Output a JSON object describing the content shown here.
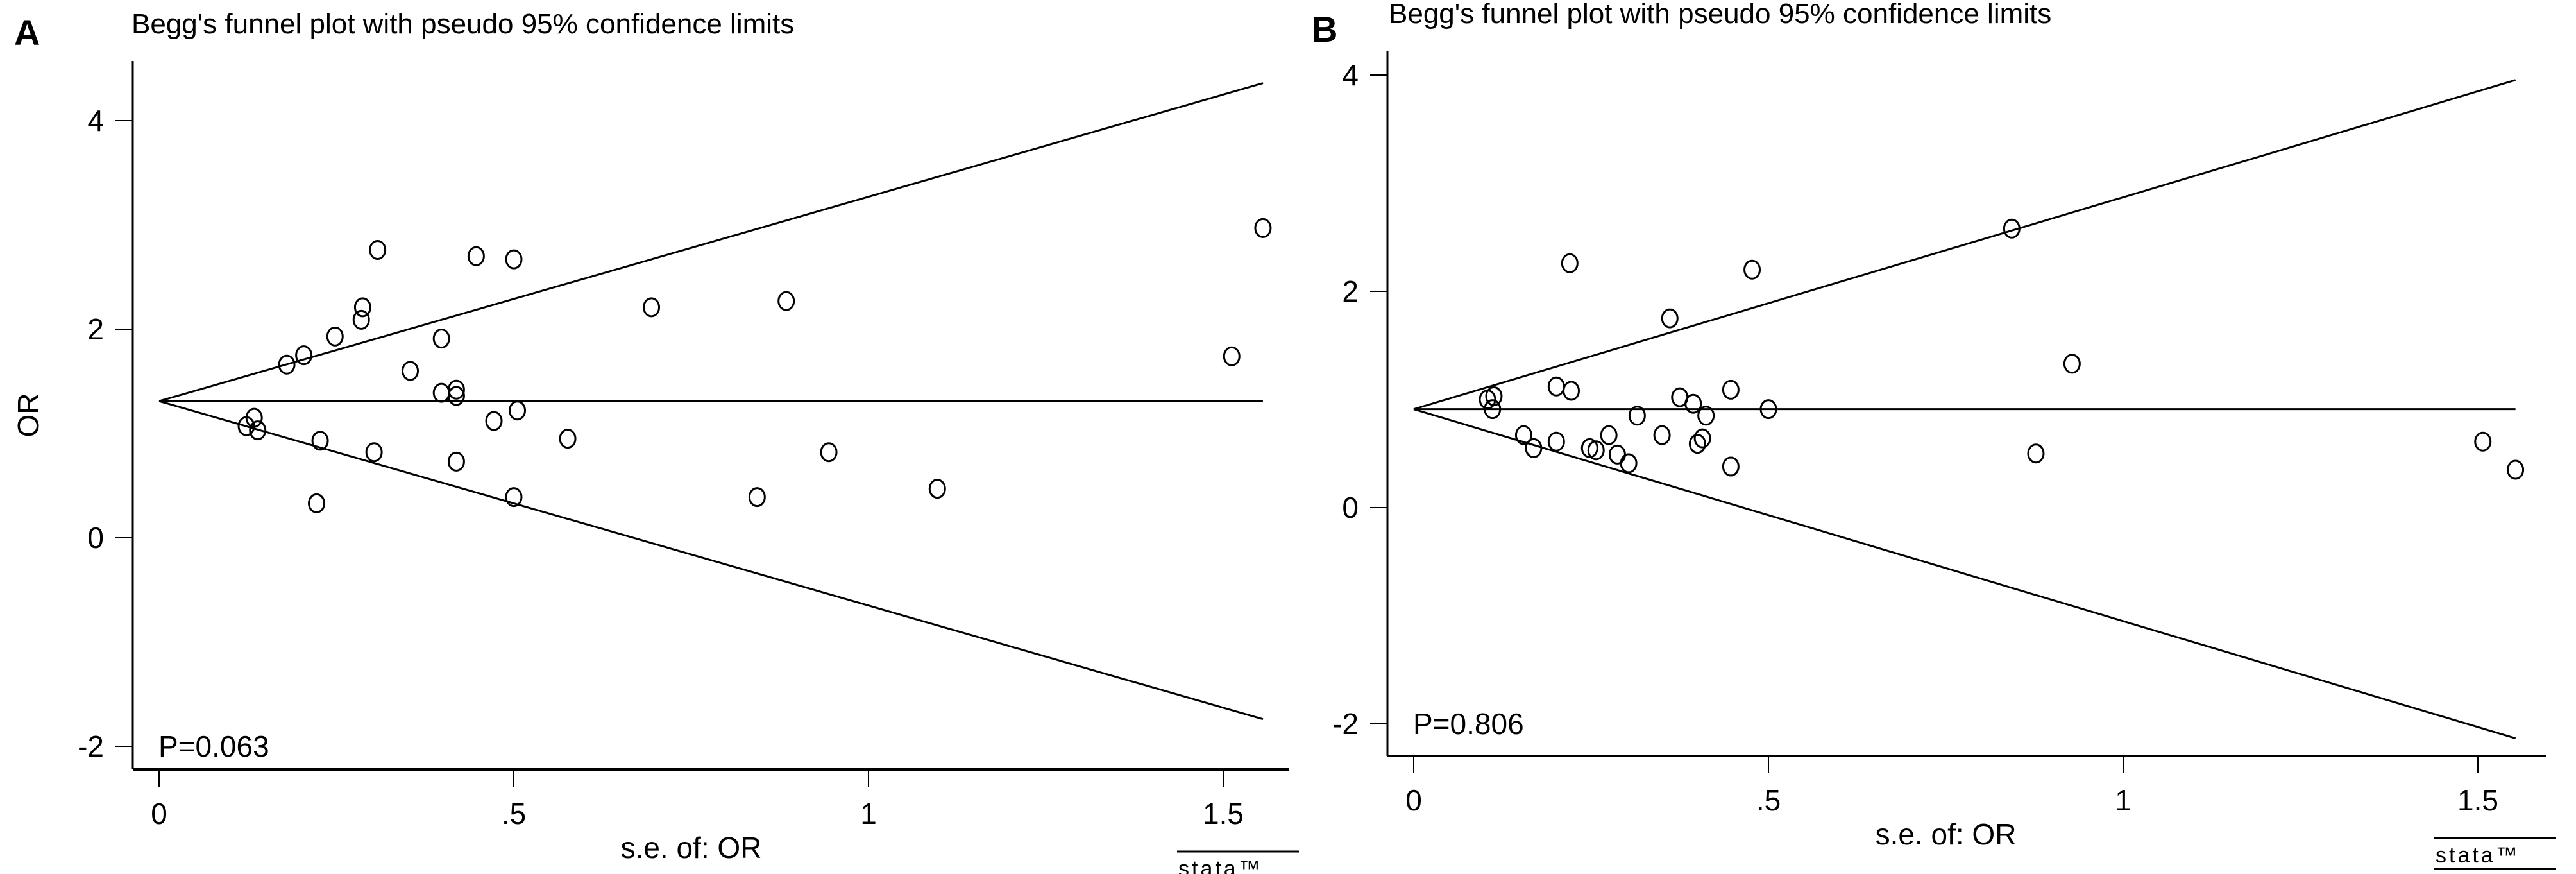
{
  "chart_data": [
    {
      "type": "scatter",
      "panel": "A",
      "title": "Begg's funnel plot with pseudo 95% confidence limits",
      "xlabel": "s.e. of: OR",
      "ylabel": "OR",
      "xlim": [
        -0.025,
        1.59
      ],
      "ylim": [
        -2.3,
        4.6
      ],
      "xticks": [
        0,
        0.5,
        1,
        1.5
      ],
      "xtick_labels": [
        "0",
        ".5",
        "1",
        "1.5"
      ],
      "yticks": [
        -2,
        0,
        2,
        4
      ],
      "ytick_labels": [
        "-2",
        "0",
        "2",
        "4"
      ],
      "pooled_estimate": 1.31,
      "funnel_se_max": 1.556,
      "annotation": "P=0.063",
      "watermark": "stata™",
      "points": [
        [
          0.123,
          1.07
        ],
        [
          0.134,
          1.15
        ],
        [
          0.139,
          1.03
        ],
        [
          0.18,
          1.66
        ],
        [
          0.204,
          1.75
        ],
        [
          0.227,
          0.93
        ],
        [
          0.222,
          0.33
        ],
        [
          0.248,
          1.93
        ],
        [
          0.285,
          2.09
        ],
        [
          0.287,
          2.21
        ],
        [
          0.308,
          2.76
        ],
        [
          0.303,
          0.82
        ],
        [
          0.354,
          1.6
        ],
        [
          0.398,
          1.91
        ],
        [
          0.398,
          1.39
        ],
        [
          0.419,
          1.42
        ],
        [
          0.419,
          1.36
        ],
        [
          0.419,
          0.73
        ],
        [
          0.447,
          2.7
        ],
        [
          0.472,
          1.12
        ],
        [
          0.5,
          2.67
        ],
        [
          0.505,
          1.22
        ],
        [
          0.5,
          0.39
        ],
        [
          0.576,
          0.95
        ],
        [
          0.694,
          2.21
        ],
        [
          0.843,
          0.39
        ],
        [
          0.884,
          2.27
        ],
        [
          0.944,
          0.82
        ],
        [
          1.097,
          0.47
        ],
        [
          1.512,
          1.74
        ],
        [
          1.556,
          2.97
        ]
      ]
    },
    {
      "type": "scatter",
      "panel": "B",
      "title": "Begg's funnel plot with pseudo 95% confidence limits",
      "xlabel": "s.e. of: OR",
      "ylabel": "",
      "xlim": [
        -0.025,
        1.6
      ],
      "ylim": [
        -2.4,
        4.3
      ],
      "xticks": [
        0,
        0.5,
        1,
        1.5
      ],
      "xtick_labels": [
        "0",
        ".5",
        "1",
        "1.5"
      ],
      "yticks": [
        -2,
        0,
        2,
        4
      ],
      "ytick_labels": [
        "-2",
        "0",
        "2",
        "4"
      ],
      "pooled_estimate": 0.91,
      "funnel_se_max": 1.553,
      "annotation": "P=0.806",
      "watermark": "stata™",
      "points": [
        [
          0.104,
          1.0
        ],
        [
          0.113,
          1.03
        ],
        [
          0.111,
          0.91
        ],
        [
          0.155,
          0.67
        ],
        [
          0.169,
          0.55
        ],
        [
          0.201,
          1.12
        ],
        [
          0.201,
          0.61
        ],
        [
          0.22,
          2.26
        ],
        [
          0.222,
          1.08
        ],
        [
          0.248,
          0.55
        ],
        [
          0.257,
          0.53
        ],
        [
          0.275,
          0.67
        ],
        [
          0.287,
          0.49
        ],
        [
          0.303,
          0.41
        ],
        [
          0.315,
          0.85
        ],
        [
          0.35,
          0.67
        ],
        [
          0.361,
          1.75
        ],
        [
          0.375,
          1.02
        ],
        [
          0.394,
          0.96
        ],
        [
          0.4,
          0.59
        ],
        [
          0.407,
          0.64
        ],
        [
          0.412,
          0.85
        ],
        [
          0.447,
          1.09
        ],
        [
          0.447,
          0.38
        ],
        [
          0.477,
          2.2
        ],
        [
          0.5,
          0.91
        ],
        [
          0.843,
          2.58
        ],
        [
          0.877,
          0.5
        ],
        [
          0.928,
          1.33
        ],
        [
          1.507,
          0.61
        ],
        [
          1.553,
          0.35
        ]
      ]
    }
  ]
}
